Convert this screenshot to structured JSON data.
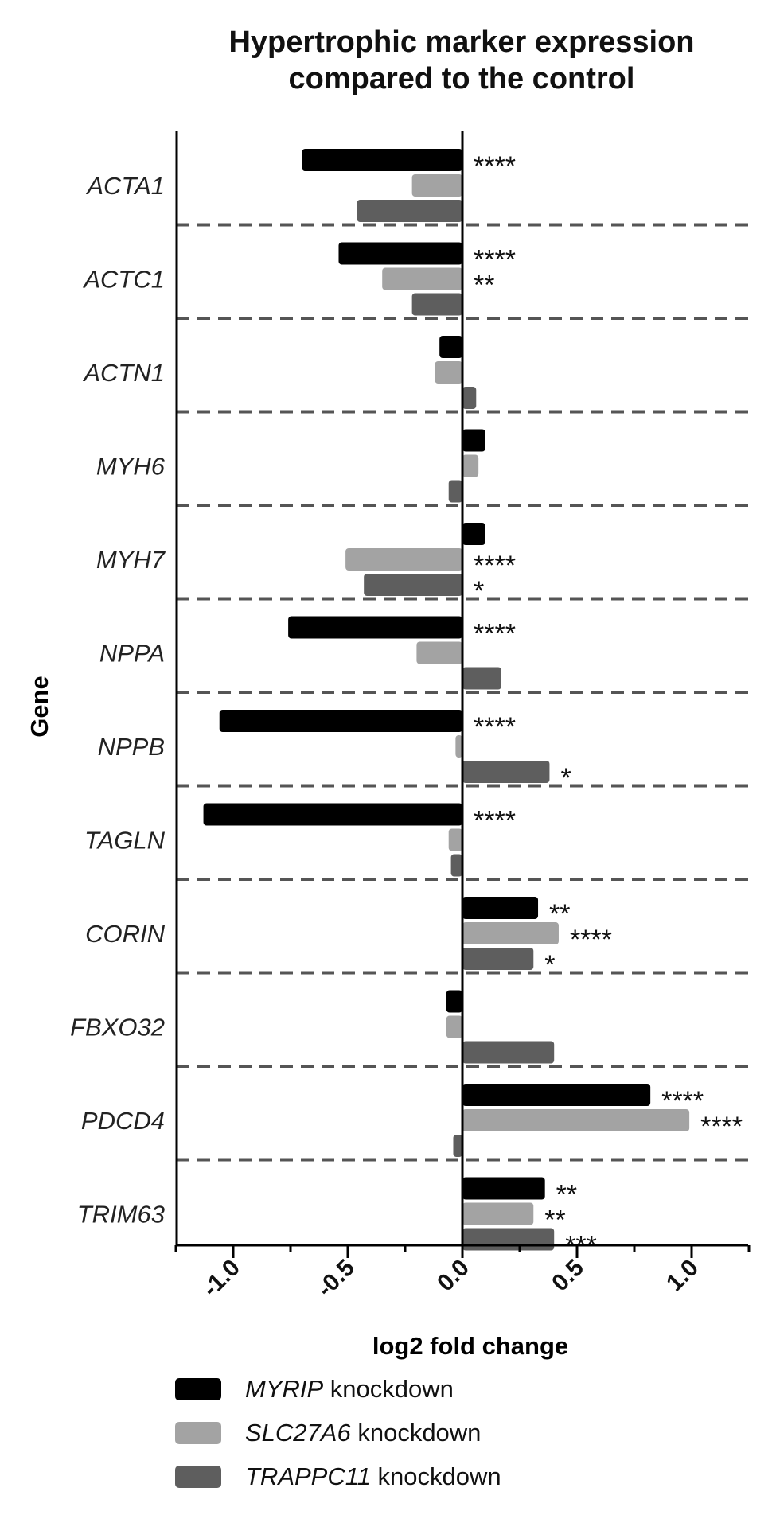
{
  "chart_data": {
    "type": "bar",
    "orientation": "horizontal",
    "title": [
      "Hypertrophic marker expression",
      "compared to the control"
    ],
    "xlabel": "log2 fold change",
    "ylabel": "Gene",
    "xlim": [
      -1.25,
      1.25
    ],
    "xticks": [
      -1.0,
      -0.5,
      0.0,
      0.5,
      1.0
    ],
    "xtick_labels": [
      "-1.0",
      "-0.5",
      "0.0",
      "0.5",
      "1.0"
    ],
    "legend_position": "bottom",
    "categories": [
      "ACTA1",
      "ACTC1",
      "ACTN1",
      "MYH6",
      "MYH7",
      "NPPA",
      "NPPB",
      "TAGLN",
      "CORIN",
      "FBXO32",
      "PDCD4",
      "TRIM63"
    ],
    "series": [
      {
        "name": "MYRIP",
        "legend_suffix": " knockdown",
        "color": "#000000",
        "values": [
          -0.7,
          -0.54,
          -0.1,
          0.1,
          0.1,
          -0.76,
          -1.06,
          -1.13,
          0.33,
          -0.07,
          0.82,
          0.36
        ],
        "significance": [
          "****",
          "****",
          "",
          "",
          "",
          "****",
          "****",
          "****",
          "**",
          "",
          "****",
          "**"
        ]
      },
      {
        "name": "SLC27A6",
        "legend_suffix": " knockdown",
        "color": "#a3a3a3",
        "values": [
          -0.22,
          -0.35,
          -0.12,
          0.07,
          -0.51,
          -0.2,
          -0.03,
          -0.06,
          0.42,
          -0.07,
          0.99,
          0.31
        ],
        "significance": [
          "",
          "**",
          "",
          "",
          "****",
          "",
          "",
          "",
          "****",
          "",
          "****",
          "**"
        ]
      },
      {
        "name": "TRAPPC11",
        "legend_suffix": " knockdown",
        "color": "#5e5e5e",
        "values": [
          -0.46,
          -0.22,
          0.06,
          -0.06,
          -0.43,
          0.17,
          0.38,
          -0.05,
          0.31,
          0.4,
          -0.04,
          0.4
        ],
        "significance": [
          "",
          "",
          "",
          "",
          "*",
          "",
          "*",
          "",
          "*",
          "",
          "",
          "***"
        ]
      }
    ]
  }
}
